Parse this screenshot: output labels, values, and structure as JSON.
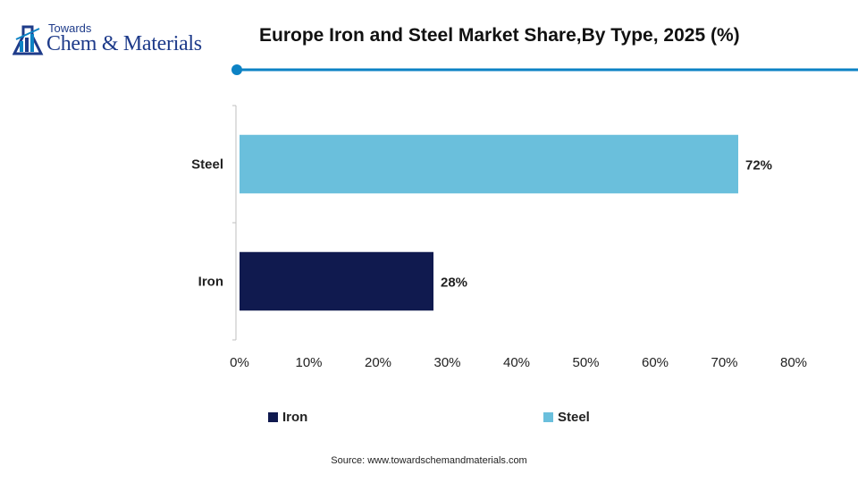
{
  "header": {
    "logo_top": "Towards",
    "logo_main": "Chem & Materials",
    "accent_color": "#0c82c4"
  },
  "chart_data": {
    "type": "bar",
    "orientation": "horizontal",
    "title": "Europe Iron and Steel Market Share,By Type, 2025 (%)",
    "categories": [
      "Steel",
      "Iron"
    ],
    "values": [
      72,
      28
    ],
    "value_labels": [
      "72%",
      "28%"
    ],
    "colors": [
      "#6abfdc",
      "#101a4f"
    ],
    "xlim": [
      0,
      80
    ],
    "x_ticks": [
      "0%",
      "10%",
      "20%",
      "30%",
      "40%",
      "50%",
      "60%",
      "70%",
      "80%"
    ],
    "grid": false,
    "legend_position": "bottom",
    "legend": [
      {
        "label": "Iron",
        "color": "#101a4f"
      },
      {
        "label": "Steel",
        "color": "#6abfdc"
      }
    ]
  },
  "footer": {
    "source": "Source: www.towardschemandmaterials.com"
  }
}
